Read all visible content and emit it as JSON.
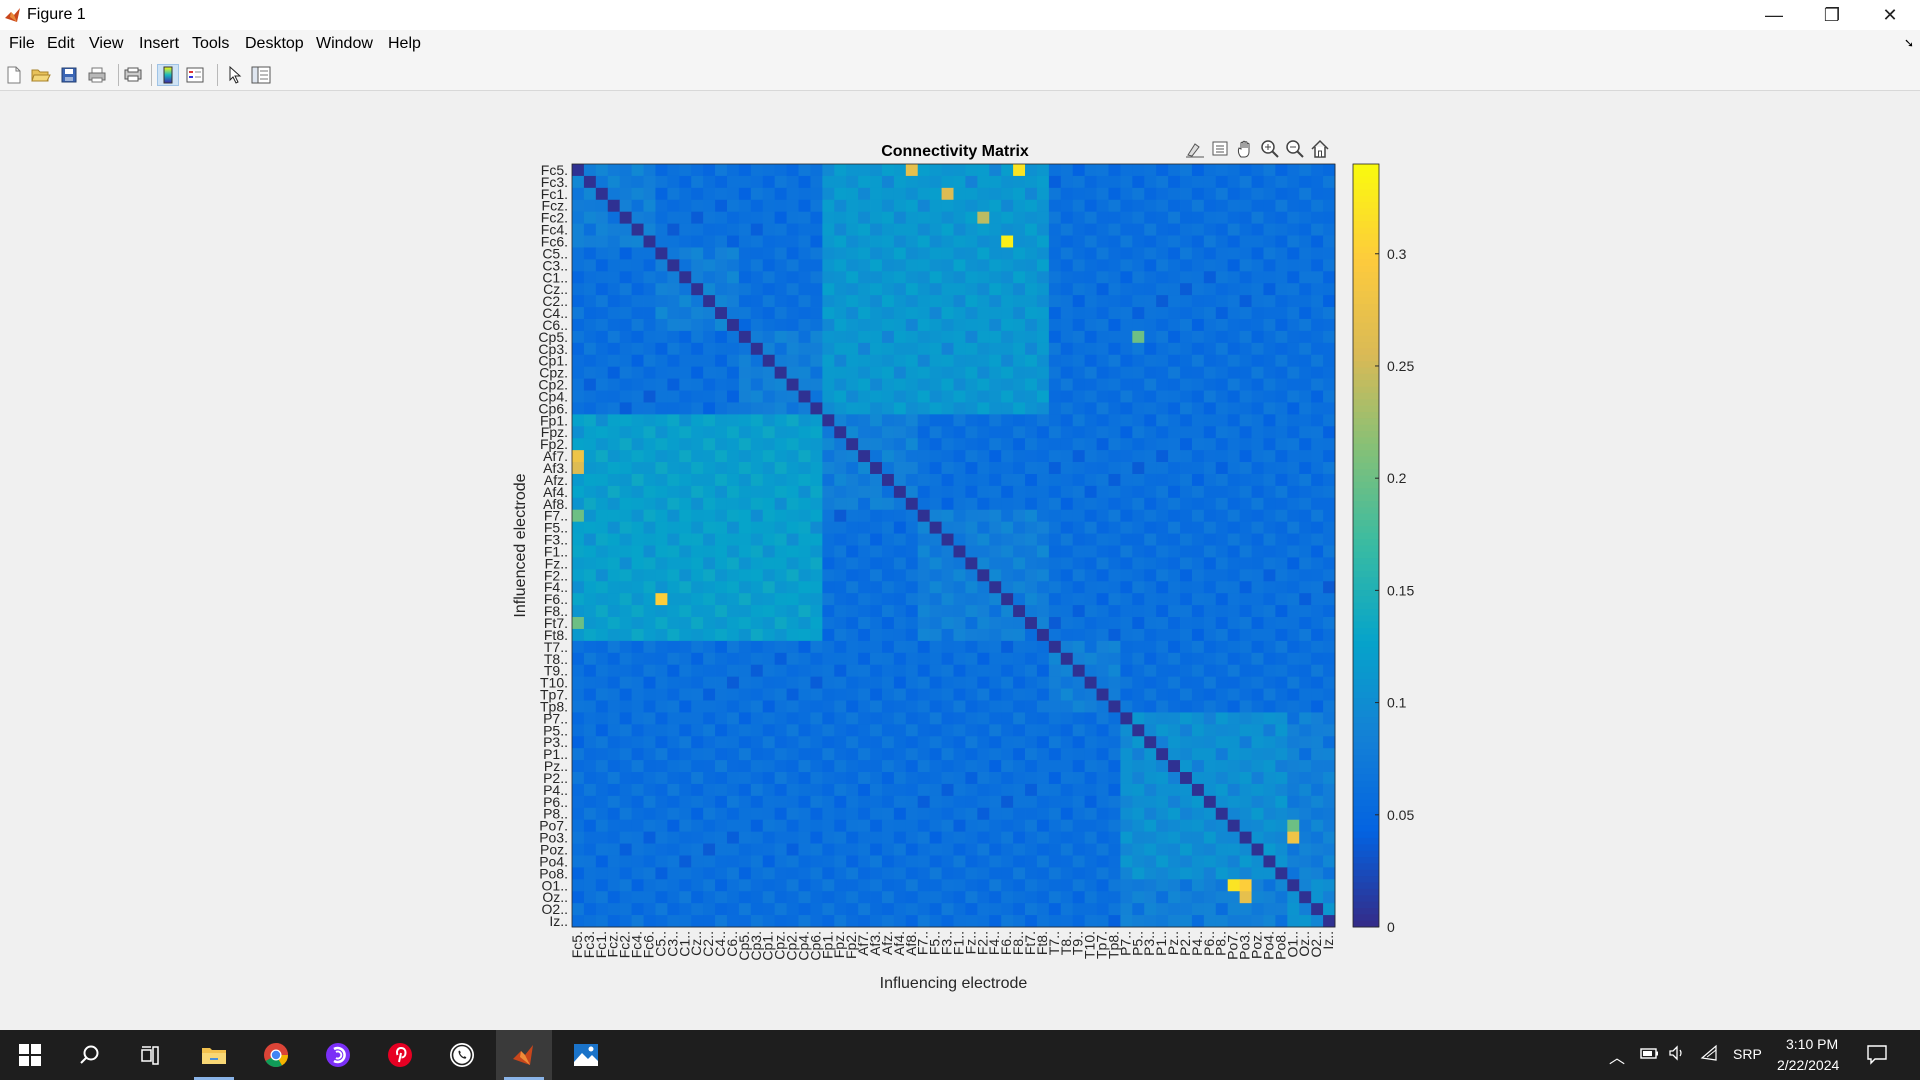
{
  "window": {
    "title": "Figure 1",
    "minimize": "—",
    "restore": "❐",
    "close": "✕"
  },
  "menu": [
    "File",
    "Edit",
    "View",
    "Insert",
    "Tools",
    "Desktop",
    "Window",
    "Help"
  ],
  "menu_arrow": "➘",
  "toolbar_icons": [
    "new-figure-icon",
    "open-file-icon",
    "save-icon",
    "print-icon",
    "print-preview-icon",
    "colorbar-toggle-icon",
    "legend-toggle-icon",
    "pointer-icon",
    "property-inspector-icon"
  ],
  "axes_toolbar_icons": [
    "brush-icon",
    "data-tips-icon",
    "pan-icon",
    "zoom-in-icon",
    "zoom-out-icon",
    "home-icon"
  ],
  "colors": {
    "viridis_low": "#3e26a8",
    "viridis_high": "#f9fb15"
  },
  "chart_data": {
    "type": "heatmap",
    "title": "Connectivity Matrix",
    "xlabel": "Influencing electrode",
    "ylabel": "Influenced electrode",
    "y_tick_labels": [
      "Fc5.",
      "Fc3.",
      "Fc1.",
      "Fcz.",
      "Fc2.",
      "Fc4.",
      "Fc6.",
      "C5..",
      "C3..",
      "C1..",
      "Cz..",
      "C2..",
      "C4..",
      "C6..",
      "Cp5.",
      "Cp3.",
      "Cp1.",
      "Cpz.",
      "Cp2.",
      "Cp4.",
      "Cp6.",
      "Fp1.",
      "Fpz.",
      "Fp2.",
      "Af7.",
      "Af3.",
      "Afz.",
      "Af4.",
      "Af8.",
      "F7..",
      "F5..",
      "F3..",
      "F1..",
      "Fz..",
      "F2..",
      "F4..",
      "F6..",
      "F8..",
      "Ft7.",
      "Ft8.",
      "T7..",
      "T8..",
      "T9..",
      "T10.",
      "Tp7.",
      "Tp8.",
      "P7..",
      "P5..",
      "P3..",
      "P1..",
      "Pz..",
      "P2..",
      "P4..",
      "P6..",
      "P8..",
      "Po7.",
      "Po3.",
      "Poz.",
      "Po4.",
      "Po8.",
      "O1..",
      "Oz..",
      "O2..",
      "Iz.."
    ],
    "x_tick_labels": [
      "Fc5.",
      "Fc3.",
      "Fc1.",
      "Fcz.",
      "Fc2.",
      "Fc4.",
      "Fc6.",
      "C5..",
      "C3..",
      "C1..",
      "Cz..",
      "C2..",
      "C4..",
      "C6..",
      "Cp5.",
      "Cp3.",
      "Cp1.",
      "Cpz.",
      "Cp2.",
      "Cp4.",
      "Cp6.",
      "Fp1.",
      "Fpz.",
      "Fp2.",
      "Af7.",
      "Af3.",
      "Afz.",
      "Af4.",
      "Af8.",
      "F7..",
      "F5..",
      "F3..",
      "F1..",
      "Fz..",
      "F2..",
      "F4..",
      "F6..",
      "F8..",
      "Ft7.",
      "Ft8.",
      "T7..",
      "T8..",
      "T9..",
      "T10.",
      "Tp7.",
      "Tp8.",
      "P7..",
      "P5..",
      "P3..",
      "P1..",
      "Pz..",
      "P2..",
      "P4..",
      "P6..",
      "P8..",
      "Po7.",
      "Po3.",
      "Poz.",
      "Po4.",
      "Po8.",
      "O1..",
      "Oz..",
      "O2..",
      "Iz.."
    ],
    "colorbar": {
      "range": [
        0,
        0.34
      ],
      "ticks": [
        0,
        0.05,
        0.1,
        0.15,
        0.2,
        0.25,
        0.3
      ],
      "tick_labels": [
        "0",
        "0.05",
        "0.1",
        "0.15",
        "0.2",
        "0.25",
        "0.3"
      ],
      "colormap": "parula"
    },
    "notable_cells": [
      {
        "row": "Fc5.",
        "col": "Af8.",
        "value": 0.27
      },
      {
        "row": "Fc5.",
        "col": "F8..",
        "value": 0.32
      },
      {
        "row": "Fc6.",
        "col": "F6..",
        "value": 0.33
      },
      {
        "row": "Fc2.",
        "col": "F2..",
        "value": 0.24
      },
      {
        "row": "Fc1.",
        "col": "F3..",
        "value": 0.26
      },
      {
        "row": "Af7.",
        "col": "Fc5.",
        "value": 0.28
      },
      {
        "row": "Af3.",
        "col": "Fc5.",
        "value": 0.26
      },
      {
        "row": "F6..",
        "col": "C5..",
        "value": 0.3
      },
      {
        "row": "F7..",
        "col": "Fc5.",
        "value": 0.2
      },
      {
        "row": "Ft7.",
        "col": "Fc5.",
        "value": 0.2
      },
      {
        "row": "Po3.",
        "col": "O1..",
        "value": 0.28
      },
      {
        "row": "Po7.",
        "col": "O1..",
        "value": 0.2
      },
      {
        "row": "O1..",
        "col": "Po7.",
        "value": 0.32
      },
      {
        "row": "O1..",
        "col": "Po3.",
        "value": 0.3
      },
      {
        "row": "Oz..",
        "col": "Po3.",
        "value": 0.27
      },
      {
        "row": "Cp5.",
        "col": "P5..",
        "value": 0.2
      }
    ]
  },
  "taskbar": {
    "icons": [
      "windows-start-icon",
      "search-icon",
      "task-view-icon",
      "file-explorer-icon",
      "chrome-icon",
      "app-circle-icon",
      "pinterest-icon",
      "whatsapp-icon",
      "matlab-icon",
      "photos-icon"
    ],
    "tray_lang": "SRP",
    "time": "3:10 PM",
    "date": "2/22/2024"
  }
}
